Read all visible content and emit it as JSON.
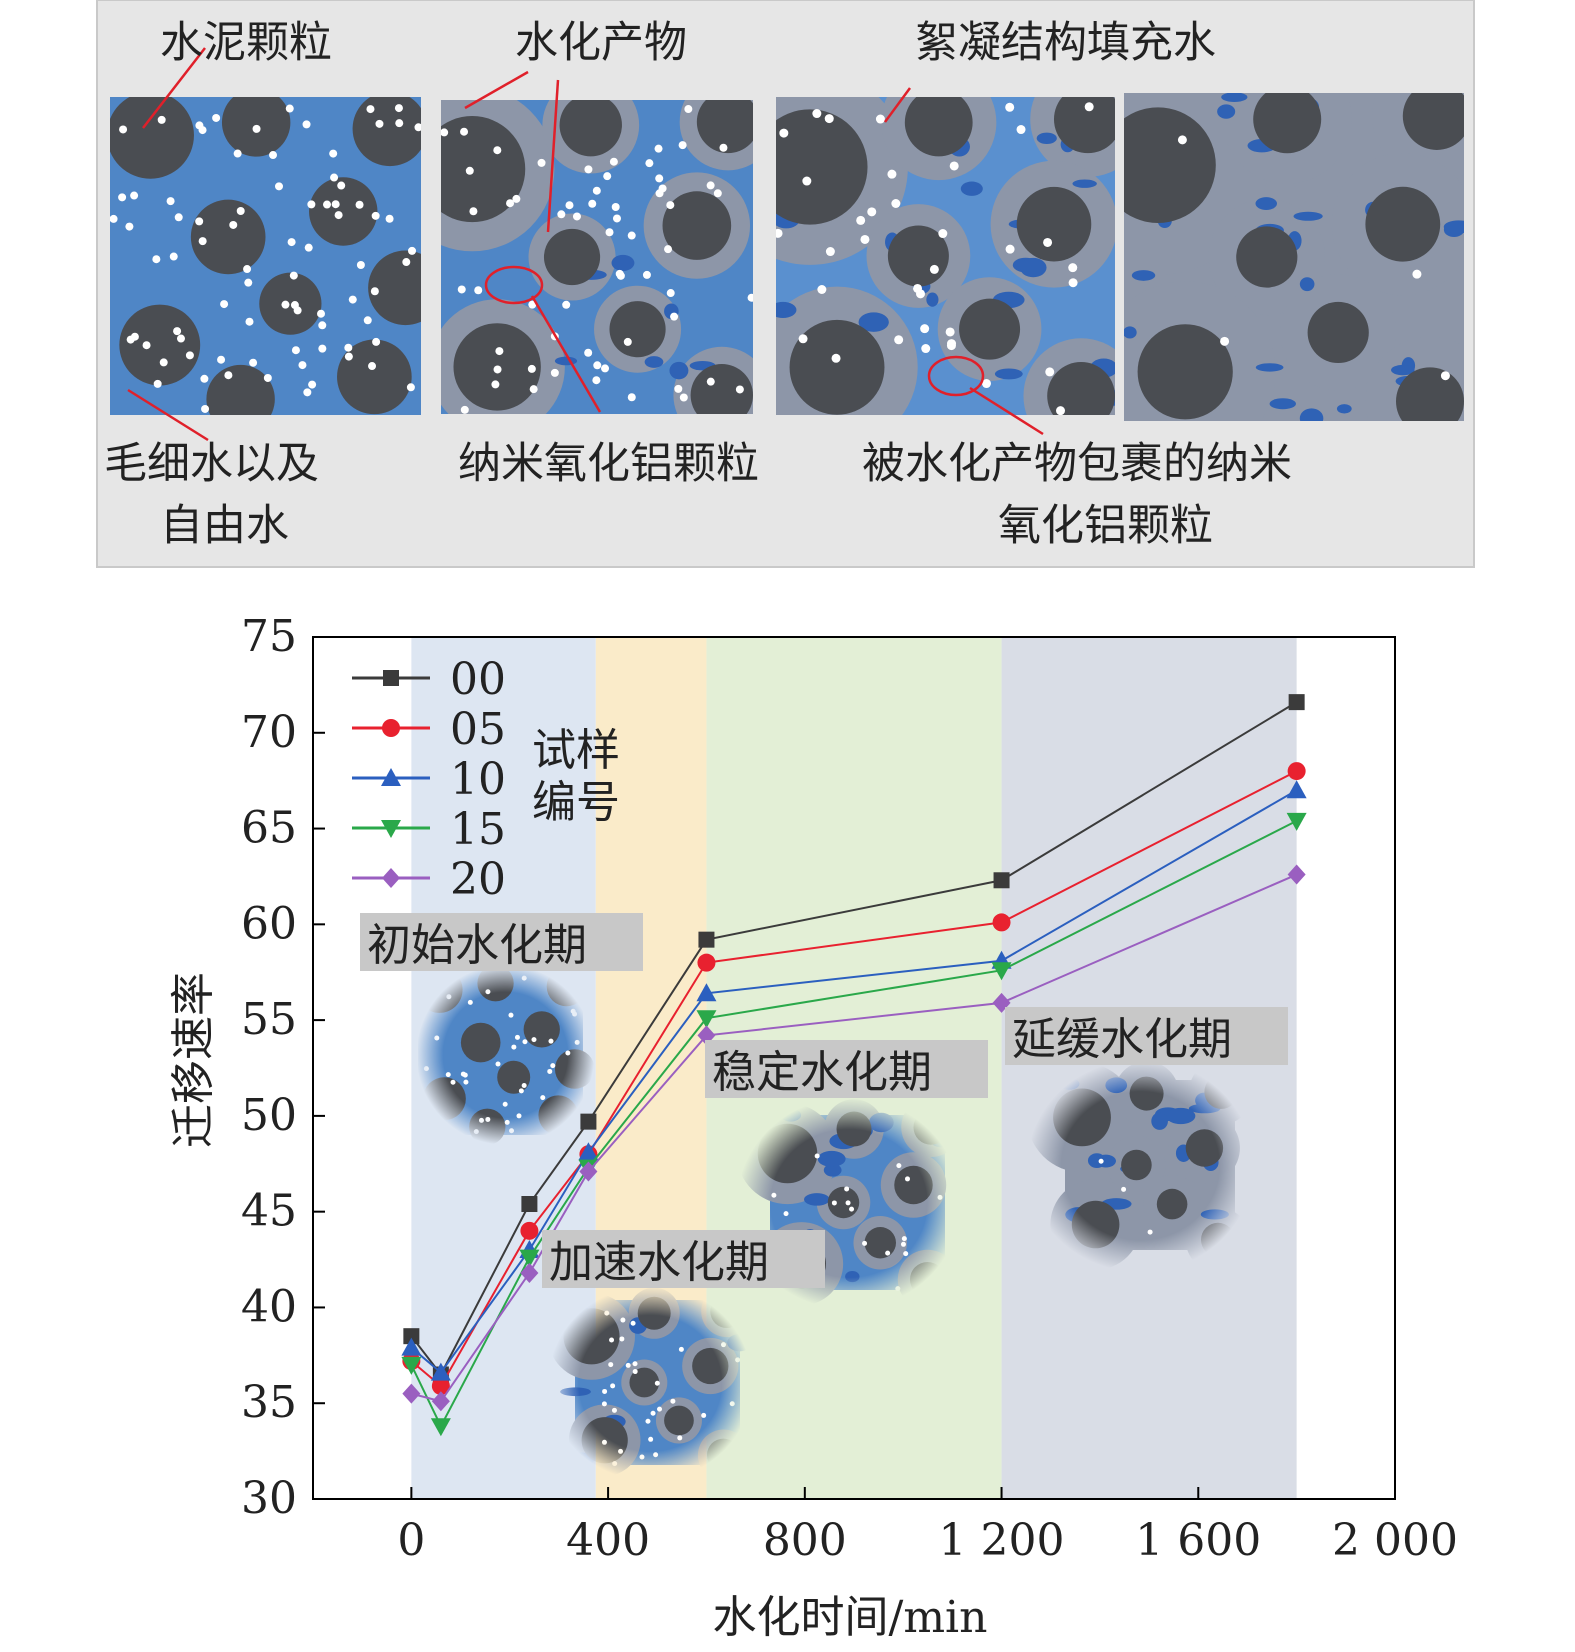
{
  "schematic": {
    "labels": {
      "cement_particles": "水泥颗粒",
      "hydration_products": "水化产物",
      "floc_water": "絮凝结构填充水",
      "capillary_water_1": "毛细水以及",
      "capillary_water_2": "自由水",
      "nano_alumina": "纳米氧化铝颗粒",
      "wrapped_alumina_1": "被水化产物包裹的纳米",
      "wrapped_alumina_2": "氧化铝颗粒"
    },
    "colors": {
      "water": "#4f86c6",
      "cement": "#4a4d52",
      "product": "#8d96a8",
      "floc": "#2f62b5",
      "leader": "#e0202a",
      "panel_bg": "#e6e6e6"
    }
  },
  "stages": {
    "initial": "初始水化期",
    "acceleration": "加速水化期",
    "steady": "稳定水化期",
    "delayed": "延缓水化期"
  },
  "chart_data": {
    "type": "line",
    "xlabel": "水化时间/min",
    "ylabel": "迁移速率",
    "xlim": [
      -200,
      2000
    ],
    "ylim": [
      30,
      75
    ],
    "xticks": [
      0,
      400,
      800,
      1200,
      1600,
      2000
    ],
    "xtick_labels": [
      "0",
      "400",
      "800",
      "1 200",
      "1 600",
      "2 000"
    ],
    "yticks": [
      30,
      35,
      40,
      45,
      50,
      55,
      60,
      65,
      70,
      75
    ],
    "legend_title": "试样\n编号",
    "legend_position": "top-left",
    "grid": false,
    "x": [
      0,
      60,
      240,
      360,
      600,
      1200,
      1800
    ],
    "series": [
      {
        "name": "00",
        "values": [
          38.5,
          36.5,
          45.4,
          49.7,
          59.2,
          62.3,
          71.6
        ],
        "color": "#3b3b3b",
        "marker": "square"
      },
      {
        "name": "05",
        "values": [
          37.2,
          35.9,
          44.0,
          48.0,
          58.0,
          60.1,
          68.0
        ],
        "color": "#e8212f",
        "marker": "circle"
      },
      {
        "name": "10",
        "values": [
          37.9,
          36.6,
          43.0,
          48.1,
          56.4,
          58.1,
          67.0
        ],
        "color": "#2b5fbf",
        "marker": "triangle-up"
      },
      {
        "name": "15",
        "values": [
          37.0,
          33.8,
          42.6,
          47.3,
          55.1,
          57.6,
          65.4
        ],
        "color": "#2aa84a",
        "marker": "triangle-down"
      },
      {
        "name": "20",
        "values": [
          35.5,
          35.1,
          41.8,
          47.1,
          54.2,
          55.9,
          62.6
        ],
        "color": "#9a5fc0",
        "marker": "diamond"
      }
    ],
    "stage_bands": [
      {
        "from": 0,
        "to": 375,
        "color": "#dde6f2"
      },
      {
        "from": 375,
        "to": 600,
        "color": "#faebc9"
      },
      {
        "from": 600,
        "to": 1200,
        "color": "#e3efd6"
      },
      {
        "from": 1200,
        "to": 1800,
        "color": "#d9dde6"
      }
    ]
  }
}
